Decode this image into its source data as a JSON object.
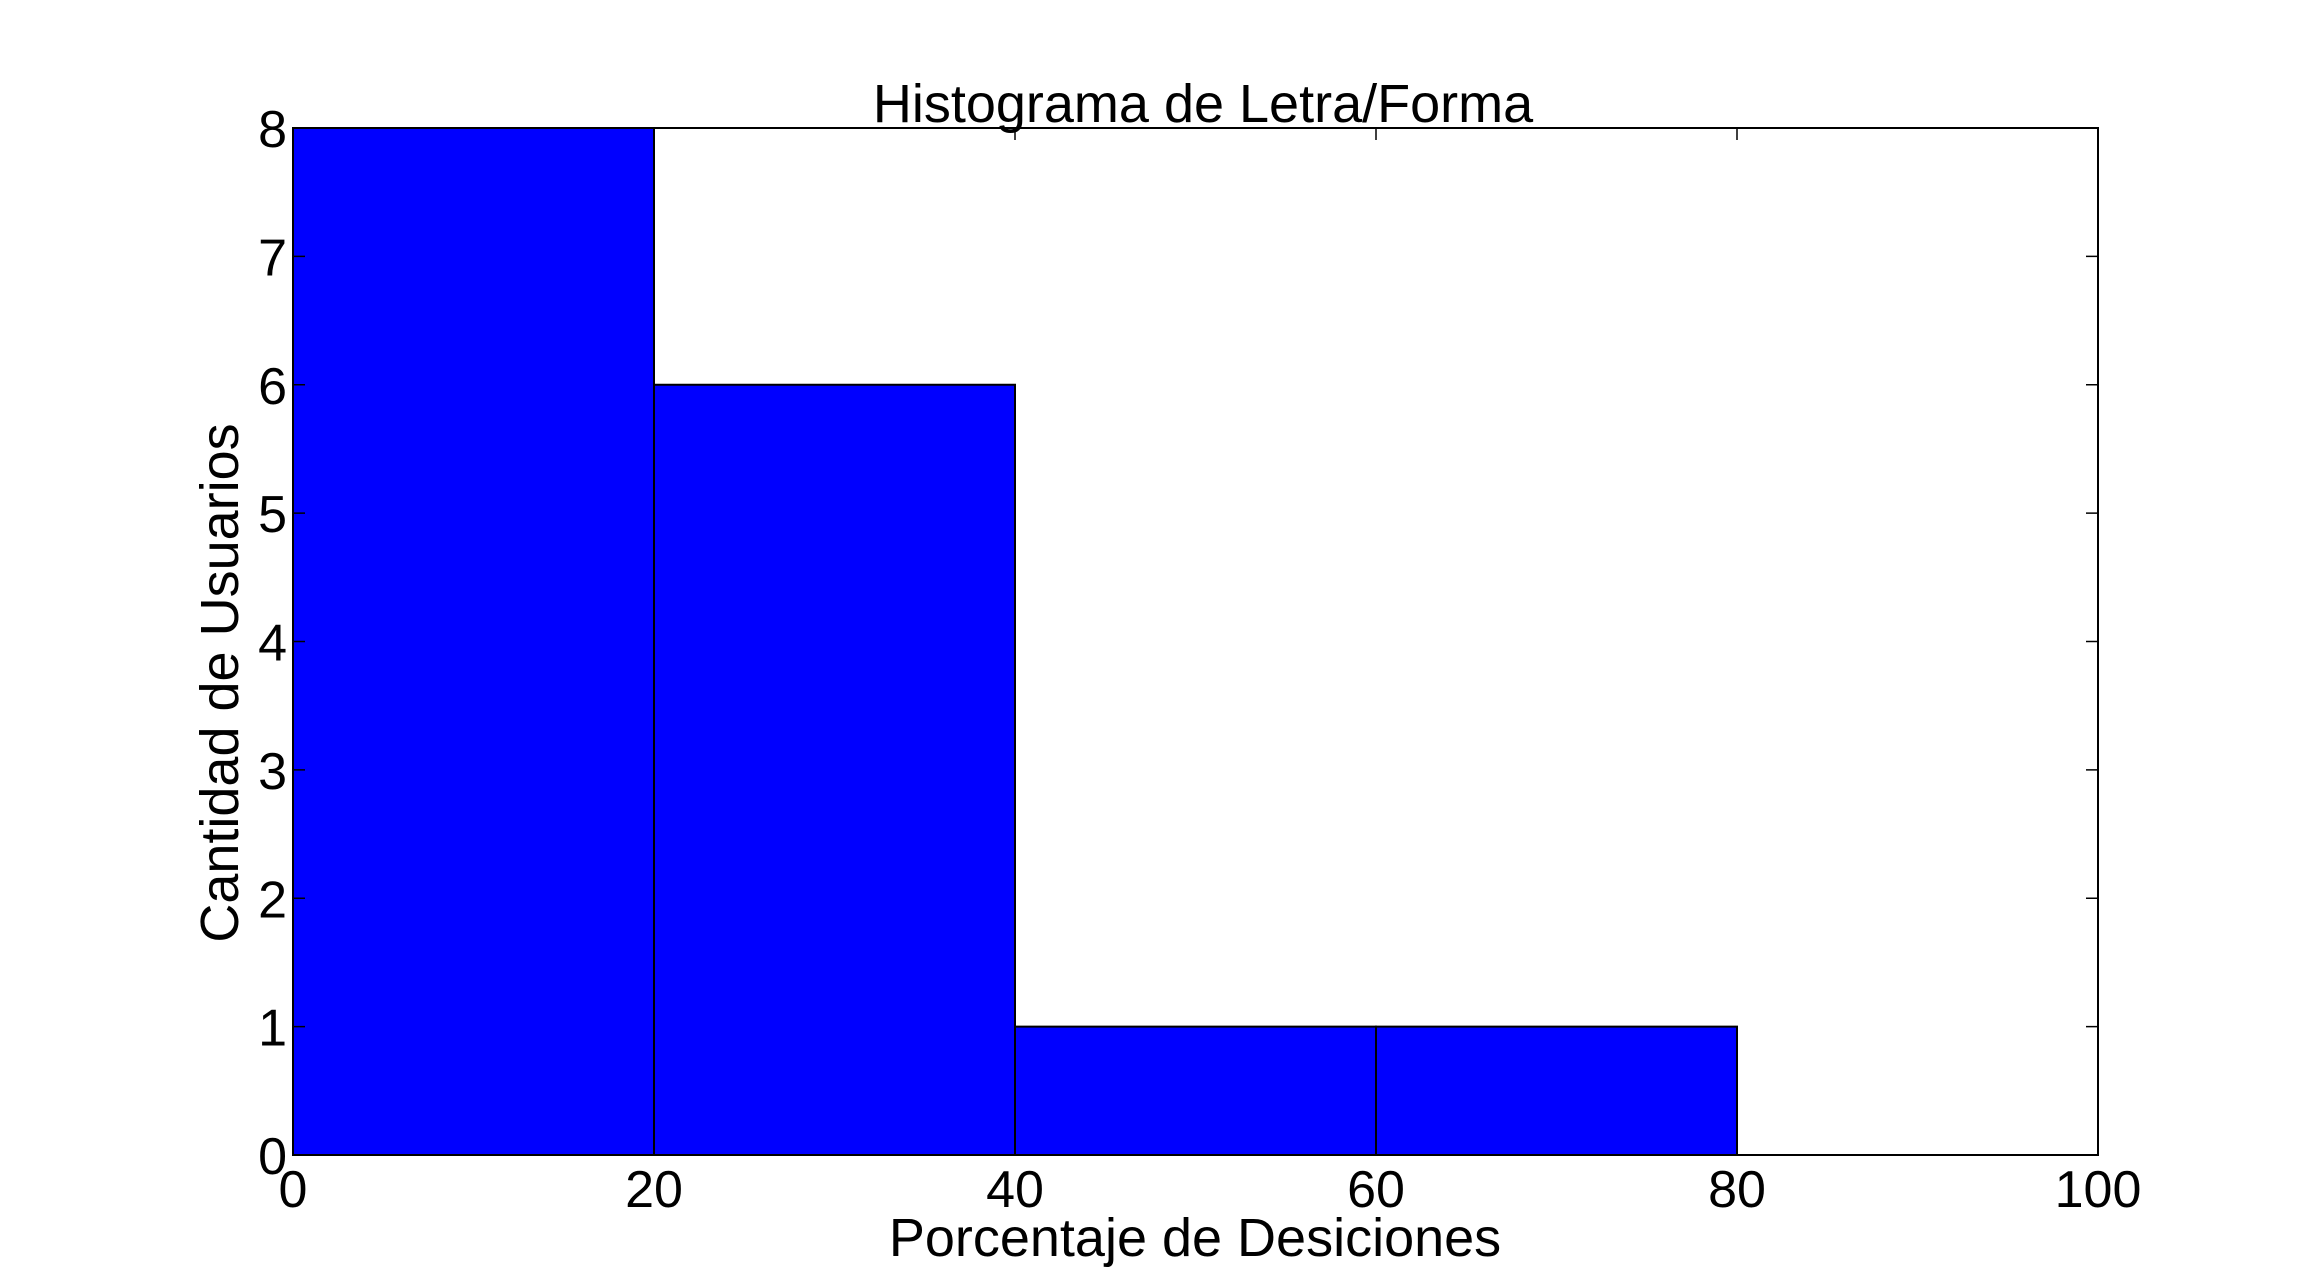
{
  "chart_data": {
    "type": "bar",
    "subtype": "histogram",
    "title": "Histograma de Letra/Forma",
    "xlabel": "Porcentaje de Desiciones",
    "ylabel": "Cantidad de Usuarios",
    "bins": [
      {
        "start": 0,
        "end": 20,
        "count": 8
      },
      {
        "start": 20,
        "end": 40,
        "count": 6
      },
      {
        "start": 40,
        "end": 60,
        "count": 1
      },
      {
        "start": 60,
        "end": 80,
        "count": 1
      }
    ],
    "xlim": [
      0,
      100
    ],
    "ylim": [
      0,
      8
    ],
    "xticks": [
      0,
      20,
      40,
      60,
      80,
      100
    ],
    "yticks": [
      0,
      1,
      2,
      3,
      4,
      5,
      6,
      7,
      8
    ],
    "bar_color": "#0000ff",
    "edge_color": "#000000",
    "grid": false,
    "legend": "none"
  }
}
